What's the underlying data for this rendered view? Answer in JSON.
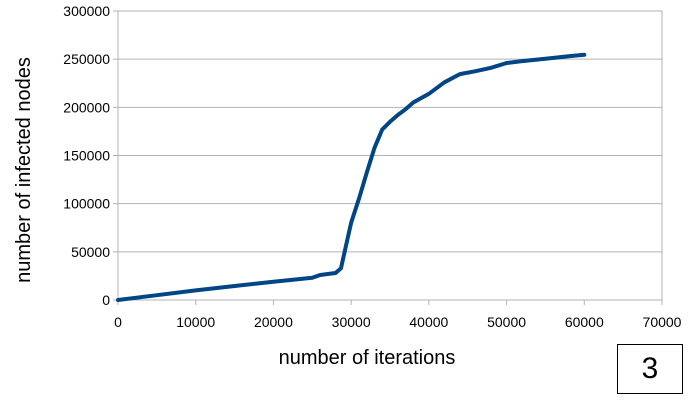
{
  "chart_data": {
    "type": "line",
    "title": "",
    "xlabel": "number of iterations",
    "ylabel": "number of infected nodes",
    "xlim": [
      0,
      70000
    ],
    "ylim": [
      0,
      300000
    ],
    "xticks": [
      "0",
      "10000",
      "20000",
      "30000",
      "40000",
      "50000",
      "60000",
      "70000"
    ],
    "yticks": [
      "0",
      "50000",
      "100000",
      "150000",
      "200000",
      "250000",
      "300000"
    ],
    "grid": "horizontal",
    "line_color": "#004586",
    "series": [
      {
        "x": [
          0,
          5000,
          10000,
          15000,
          20000,
          25000,
          26000,
          28000,
          28700,
          29300,
          30000,
          31000,
          32000,
          33000,
          34000,
          35000,
          36000,
          37000,
          38000,
          40000,
          42000,
          44000,
          46000,
          48000,
          50000,
          52000,
          55000,
          58000,
          60000
        ],
        "y": [
          0,
          5000,
          10000,
          14500,
          19000,
          23000,
          26000,
          28000,
          33000,
          55000,
          80000,
          105000,
          132000,
          158000,
          177000,
          185000,
          192000,
          198000,
          205000,
          214000,
          226000,
          234500,
          237500,
          241000,
          246000,
          248000,
          250500,
          253000,
          254500
        ]
      }
    ]
  },
  "badge": {
    "label": "3"
  }
}
